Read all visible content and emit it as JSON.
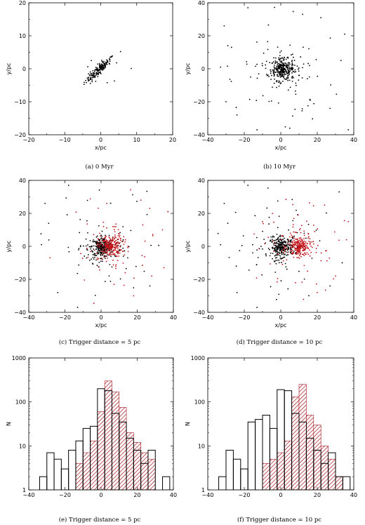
{
  "colors": {
    "red": "#c0151b",
    "black": "#000000",
    "hatch": "#a3121a"
  },
  "chart_data": [
    {
      "id": "a",
      "type": "scatter",
      "caption": "(a) 0 Myr",
      "xlabel": "x/pc",
      "ylabel": "y/pc",
      "xlim": [
        -20,
        20
      ],
      "ylim": [
        -20,
        20
      ],
      "xticks": [
        "−20",
        "−10",
        "0",
        "10",
        "20"
      ],
      "yticks": [
        "−20",
        "−10",
        "0",
        "10",
        "20"
      ],
      "xtick_values": [
        -20,
        -10,
        0,
        10,
        20
      ],
      "ytick_values": [
        -20,
        -10,
        0,
        10,
        20
      ],
      "series": [
        {
          "color": "#000000",
          "cluster": {
            "center": [
              -0.5,
              -0.3
            ],
            "spread": 1.6,
            "n": 170,
            "elong": 0.75
          },
          "points": [
            [
              5.5,
              5.2
            ],
            [
              3.2,
              3.9
            ],
            [
              -2.6,
              2.5
            ],
            [
              3.8,
              -3.7
            ],
            [
              -1.4,
              -3.8
            ],
            [
              4.4,
              1.8
            ],
            [
              -3.6,
              0.6
            ],
            [
              8.5,
              0.1
            ],
            [
              1.8,
              -4.2
            ],
            [
              -2.4,
              -3.9
            ],
            [
              2.6,
              3.5
            ]
          ]
        }
      ]
    },
    {
      "id": "b",
      "type": "scatter",
      "caption": "(b) 10 Myr",
      "xlabel": "x/pc",
      "ylabel": "y/pc",
      "xlim": [
        -40,
        40
      ],
      "ylim": [
        -40,
        40
      ],
      "xticks": [
        "−40",
        "−20",
        "0",
        "20",
        "40"
      ],
      "yticks": [
        "−40",
        "−20",
        "0",
        "20",
        "40"
      ],
      "xtick_values": [
        -40,
        -20,
        0,
        20,
        40
      ],
      "ytick_values": [
        -40,
        -20,
        0,
        20,
        40
      ],
      "series": [
        {
          "color": "#000000",
          "cluster": {
            "center": [
              1.0,
              -0.5
            ],
            "spread": 3.2,
            "n": 230
          },
          "halo": {
            "n": 170,
            "scale": 12
          },
          "points": [
            [
              -18,
              37
            ],
            [
              -31,
              26
            ],
            [
              -29,
              14
            ],
            [
              -27,
              13
            ],
            [
              35,
              21
            ],
            [
              37,
              -37
            ],
            [
              -24,
              -28
            ],
            [
              -13,
              -37
            ],
            [
              27,
              -24
            ],
            [
              22,
              31
            ],
            [
              12,
              33
            ],
            [
              -33,
              1
            ],
            [
              33,
              5
            ],
            [
              -30,
              -20
            ]
          ]
        }
      ]
    },
    {
      "id": "c",
      "type": "scatter",
      "caption": "(c) Trigger distance = 5 pc",
      "xlabel": "x/pc",
      "ylabel": "y/pc",
      "xlim": [
        -40,
        40
      ],
      "ylim": [
        -40,
        40
      ],
      "xticks": [
        "−40",
        "−20",
        "0",
        "20",
        "40"
      ],
      "yticks": [
        "−40",
        "−20",
        "0",
        "20",
        "40"
      ],
      "xtick_values": [
        -40,
        -20,
        0,
        20,
        40
      ],
      "ytick_values": [
        -40,
        -20,
        0,
        20,
        40
      ],
      "series": [
        {
          "color": "#000000",
          "cluster": {
            "center": [
              0.5,
              -0.5
            ],
            "spread": 3.0,
            "n": 200
          },
          "halo": {
            "n": 150,
            "scale": 12
          },
          "points": [
            [
              -18,
              37
            ],
            [
              -31,
              26
            ],
            [
              -29,
              14
            ],
            [
              37,
              21
            ],
            [
              -13,
              -37
            ],
            [
              -24,
              -28
            ],
            [
              27,
              -24
            ],
            [
              -33,
              1
            ]
          ]
        },
        {
          "color": "#c0151b",
          "cluster": {
            "center": [
              5.0,
              0.0
            ],
            "spread": 3.2,
            "n": 170
          },
          "halo": {
            "n": 130,
            "scale": 11
          },
          "points": [
            [
              37,
              21
            ],
            [
              34,
              10
            ],
            [
              22,
              28
            ],
            [
              28,
              -18
            ],
            [
              18,
              -30
            ]
          ]
        }
      ]
    },
    {
      "id": "d",
      "type": "scatter",
      "caption": "(d) Trigger distance = 10 pc",
      "xlabel": "x/pc",
      "ylabel": "y/pc",
      "xlim": [
        -40,
        40
      ],
      "ylim": [
        -40,
        40
      ],
      "xticks": [
        "−40",
        "−20",
        "0",
        "20",
        "40"
      ],
      "yticks": [
        "−40",
        "−20",
        "0",
        "20",
        "40"
      ],
      "xtick_values": [
        -40,
        -20,
        0,
        20,
        40
      ],
      "ytick_values": [
        -40,
        -20,
        0,
        20,
        40
      ],
      "series": [
        {
          "color": "#000000",
          "cluster": {
            "center": [
              0.5,
              -0.5
            ],
            "spread": 3.0,
            "n": 200
          },
          "halo": {
            "n": 150,
            "scale": 12
          },
          "points": [
            [
              -18,
              37
            ],
            [
              -31,
              26
            ],
            [
              -29,
              14
            ],
            [
              -13,
              -37
            ],
            [
              -24,
              -28
            ],
            [
              27,
              -24
            ],
            [
              -33,
              1
            ],
            [
              32,
              33
            ]
          ]
        },
        {
          "color": "#c0151b",
          "cluster": {
            "center": [
              10.0,
              0.0
            ],
            "spread": 3.2,
            "n": 170
          },
          "halo": {
            "n": 130,
            "scale": 11
          },
          "points": [
            [
              37,
              15
            ],
            [
              36,
              4
            ],
            [
              30,
              -18
            ],
            [
              24,
              25
            ],
            [
              20,
              -28
            ]
          ]
        }
      ]
    },
    {
      "id": "e",
      "type": "bar",
      "caption": "(e) Trigger distance = 5 pc",
      "xlabel": "",
      "ylabel": "N",
      "log_y": true,
      "xlim": [
        -40,
        40
      ],
      "ylim": [
        1,
        1000
      ],
      "xticks": [
        "−40",
        "−20",
        "0",
        "20",
        "40"
      ],
      "yticks": [
        "1",
        "10",
        "100",
        "1000"
      ],
      "xtick_values": [
        -40,
        -20,
        0,
        20,
        40
      ],
      "ytick_values": [
        1,
        10,
        100,
        1000
      ],
      "bin_width": 4,
      "series": [
        {
          "style": "outline",
          "color": "#000000",
          "bin_starts": [
            -34,
            -30,
            -26,
            -22,
            -18,
            -14,
            -10,
            -6,
            -2,
            2,
            6,
            10,
            14,
            18,
            22,
            26,
            30,
            34
          ],
          "values": [
            2,
            7,
            5,
            3,
            8,
            13,
            25,
            28,
            200,
            180,
            55,
            35,
            15,
            8,
            4,
            8,
            1,
            2
          ]
        },
        {
          "style": "hatched",
          "color": "#a3121a",
          "bin_starts": [
            -14,
            -10,
            -6,
            -2,
            2,
            6,
            10,
            14,
            18,
            22,
            26
          ],
          "values": [
            4,
            7,
            13,
            60,
            300,
            170,
            75,
            20,
            12,
            7,
            5
          ]
        }
      ]
    },
    {
      "id": "f",
      "type": "bar",
      "caption": "(f) Trigger distance = 10 pc",
      "xlabel": "",
      "ylabel": "N",
      "log_y": true,
      "xlim": [
        -40,
        40
      ],
      "ylim": [
        1,
        1000
      ],
      "xticks": [
        "−40",
        "−20",
        "0",
        "20",
        "40"
      ],
      "yticks": [
        "1",
        "10",
        "100",
        "1000"
      ],
      "xtick_values": [
        -40,
        -20,
        0,
        20,
        40
      ],
      "ytick_values": [
        1,
        10,
        100,
        1000
      ],
      "bin_width": 4,
      "series": [
        {
          "style": "outline",
          "color": "#000000",
          "bin_starts": [
            -34,
            -30,
            -26,
            -22,
            -18,
            -14,
            -10,
            -6,
            -2,
            2,
            6,
            10,
            14,
            18,
            22,
            26,
            30,
            34
          ],
          "values": [
            2,
            8,
            5,
            3,
            35,
            40,
            50,
            25,
            190,
            180,
            55,
            35,
            15,
            8,
            4,
            7,
            2,
            2
          ]
        },
        {
          "style": "hatched",
          "color": "#a3121a",
          "bin_starts": [
            -10,
            -6,
            -2,
            2,
            6,
            10,
            14,
            18,
            22,
            26,
            30
          ],
          "values": [
            4,
            5,
            7,
            13,
            130,
            250,
            50,
            30,
            10,
            5,
            2
          ]
        }
      ]
    }
  ]
}
